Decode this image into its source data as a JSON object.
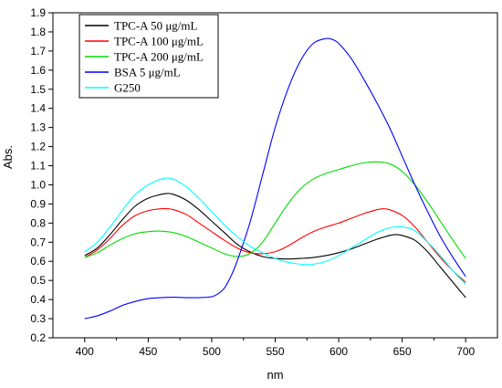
{
  "chart_data": {
    "type": "line",
    "xlabel": "nm",
    "ylabel": "Abs.",
    "xlim": [
      375,
      725
    ],
    "ylim": [
      0.2,
      1.9
    ],
    "xticks": [
      400,
      450,
      500,
      550,
      600,
      650,
      700
    ],
    "yticks": [
      0.2,
      0.3,
      0.4,
      0.5,
      0.6,
      0.7,
      0.8,
      0.9,
      1.0,
      1.1,
      1.2,
      1.3,
      1.4,
      1.5,
      1.6,
      1.7,
      1.8,
      1.9
    ],
    "ytick_labels": [
      "0.2",
      "0.3",
      "0.4",
      "0.5",
      "0.6",
      "0.7",
      "0.8",
      "0.9",
      "1.0",
      "1.1",
      "1.2",
      "1.3",
      "1.4",
      "1.5",
      "1.6",
      "1.7",
      "1.8",
      "1.9"
    ],
    "legend_position": "top-left",
    "series": [
      {
        "name": "TPC-A 50 μg/mL",
        "color": "#000000",
        "x": [
          400,
          410,
          420,
          430,
          440,
          450,
          460,
          465,
          470,
          480,
          490,
          500,
          510,
          520,
          530,
          540,
          550,
          560,
          570,
          580,
          590,
          600,
          610,
          620,
          630,
          640,
          645,
          650,
          660,
          670,
          680,
          690,
          700
        ],
        "y": [
          0.63,
          0.67,
          0.74,
          0.82,
          0.89,
          0.93,
          0.95,
          0.955,
          0.95,
          0.92,
          0.87,
          0.81,
          0.75,
          0.69,
          0.65,
          0.625,
          0.615,
          0.612,
          0.615,
          0.62,
          0.63,
          0.645,
          0.665,
          0.69,
          0.715,
          0.735,
          0.74,
          0.735,
          0.71,
          0.65,
          0.57,
          0.49,
          0.41
        ]
      },
      {
        "name": "TPC-A 100 μg/mL",
        "color": "#ff0000",
        "x": [
          400,
          410,
          420,
          430,
          440,
          450,
          460,
          465,
          470,
          480,
          490,
          500,
          510,
          520,
          530,
          540,
          550,
          560,
          570,
          580,
          590,
          600,
          610,
          620,
          630,
          635,
          640,
          650,
          660,
          670,
          680,
          690,
          700
        ],
        "y": [
          0.62,
          0.66,
          0.72,
          0.79,
          0.84,
          0.865,
          0.875,
          0.875,
          0.87,
          0.845,
          0.8,
          0.755,
          0.71,
          0.67,
          0.645,
          0.64,
          0.65,
          0.68,
          0.72,
          0.755,
          0.78,
          0.8,
          0.825,
          0.85,
          0.87,
          0.875,
          0.87,
          0.84,
          0.78,
          0.7,
          0.62,
          0.55,
          0.49
        ]
      },
      {
        "name": "TPC-A 200 μg/mL",
        "color": "#00dd00",
        "x": [
          400,
          410,
          420,
          430,
          440,
          450,
          460,
          470,
          480,
          490,
          500,
          510,
          520,
          530,
          540,
          550,
          560,
          570,
          580,
          590,
          600,
          610,
          620,
          630,
          640,
          650,
          660,
          670,
          680,
          690,
          700
        ],
        "y": [
          0.62,
          0.645,
          0.685,
          0.72,
          0.745,
          0.755,
          0.758,
          0.75,
          0.73,
          0.7,
          0.67,
          0.64,
          0.625,
          0.64,
          0.7,
          0.8,
          0.9,
          0.98,
          1.03,
          1.06,
          1.08,
          1.1,
          1.115,
          1.12,
          1.11,
          1.07,
          1.0,
          0.91,
          0.81,
          0.71,
          0.615
        ]
      },
      {
        "name": "BSA 5 μg/mL",
        "color": "#0000ff",
        "x": [
          400,
          410,
          420,
          430,
          440,
          450,
          460,
          470,
          480,
          490,
          500,
          505,
          510,
          515,
          520,
          530,
          540,
          550,
          560,
          570,
          580,
          590,
          595,
          600,
          610,
          620,
          630,
          640,
          650,
          660,
          670,
          680,
          690,
          700
        ],
        "y": [
          0.3,
          0.315,
          0.34,
          0.37,
          0.39,
          0.405,
          0.41,
          0.412,
          0.41,
          0.41,
          0.415,
          0.43,
          0.46,
          0.52,
          0.6,
          0.8,
          1.05,
          1.3,
          1.5,
          1.65,
          1.74,
          1.765,
          1.76,
          1.74,
          1.66,
          1.55,
          1.43,
          1.3,
          1.15,
          1.0,
          0.86,
          0.73,
          0.62,
          0.52
        ]
      },
      {
        "name": "G250",
        "color": "#00ffff",
        "x": [
          400,
          410,
          420,
          430,
          440,
          450,
          460,
          465,
          470,
          480,
          490,
          500,
          510,
          520,
          530,
          540,
          550,
          560,
          570,
          580,
          590,
          600,
          610,
          620,
          630,
          640,
          650,
          660,
          670,
          680,
          690,
          700
        ],
        "y": [
          0.65,
          0.7,
          0.78,
          0.87,
          0.95,
          1.0,
          1.03,
          1.035,
          1.03,
          0.99,
          0.93,
          0.86,
          0.79,
          0.73,
          0.68,
          0.645,
          0.615,
          0.595,
          0.585,
          0.585,
          0.6,
          0.63,
          0.67,
          0.71,
          0.75,
          0.775,
          0.78,
          0.76,
          0.7,
          0.63,
          0.55,
          0.48
        ]
      }
    ]
  }
}
